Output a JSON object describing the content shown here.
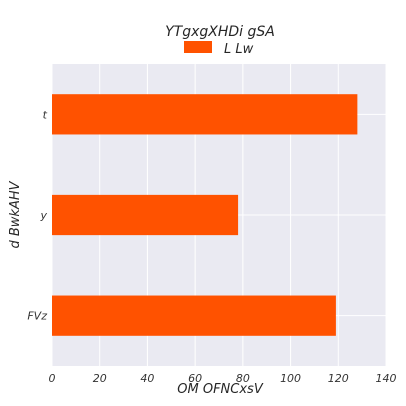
{
  "chart_data": {
    "type": "bar",
    "orientation": "horizontal",
    "title": "YTgxgXHDi gSA",
    "xlabel": "OM OFNCxsV",
    "ylabel": "d BwkAHV",
    "categories": [
      "t",
      "y",
      "FVz"
    ],
    "series": [
      {
        "name": "L Lw",
        "values": [
          128,
          78,
          119
        ],
        "color": "#ff5200"
      }
    ],
    "xlim": [
      0,
      140
    ],
    "xticks": [
      0,
      20,
      40,
      60,
      80,
      100,
      120,
      140
    ],
    "grid": true,
    "legend_position": "top-center",
    "background_color": "#eaeaf2",
    "grid_color": "#ffffff"
  }
}
